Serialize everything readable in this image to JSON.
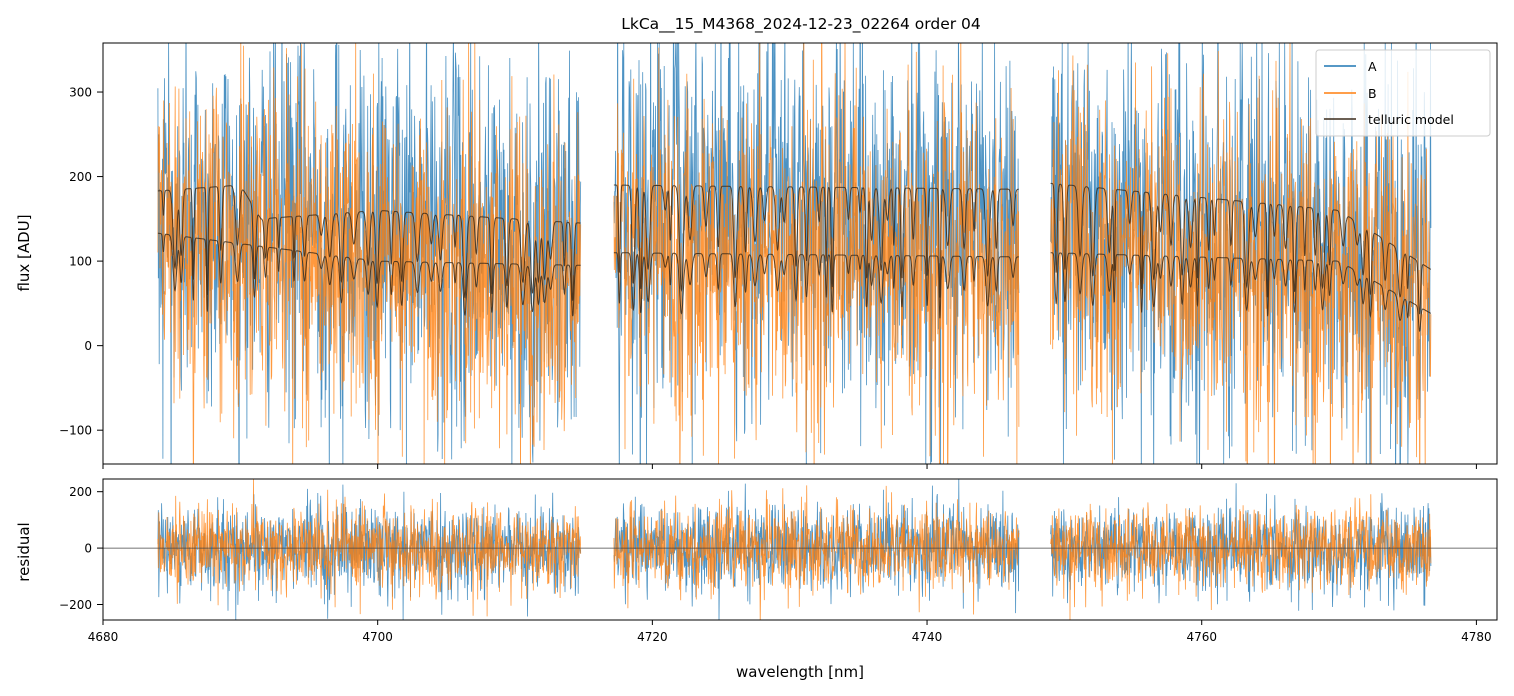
{
  "chart_data": [
    {
      "type": "line",
      "title": "LkCa__15_M4368_2024-12-23_02264  order 04",
      "xlabel": "",
      "ylabel": "flux [ADU]",
      "xlim": [
        4680,
        4781.5
      ],
      "ylim": [
        -140,
        358
      ],
      "yticks": [
        -100,
        0,
        100,
        200,
        300
      ],
      "ytick_labels": [
        "−100",
        "0",
        "100",
        "200",
        "300"
      ],
      "xticks": [
        4680,
        4700,
        4720,
        4740,
        4760,
        4780
      ],
      "xtick_labels": [
        "",
        "",
        "",
        "",
        "",
        ""
      ],
      "segments": [
        [
          4684.0,
          4714.8
        ],
        [
          4717.2,
          4746.7
        ],
        [
          4749.0,
          4776.7
        ]
      ],
      "series": [
        {
          "name": "A",
          "color": "#1f77b4",
          "kind": "noisy-flux",
          "center": [
            [
              4684,
              170
            ],
            [
              4714.8,
              130
            ],
            [
              4717.2,
              190
            ],
            [
              4746.7,
              160
            ],
            [
              4749,
              190
            ],
            [
              4776.7,
              110
            ]
          ],
          "scatter": 110
        },
        {
          "name": "B",
          "color": "#ff7f0e",
          "kind": "noisy-flux",
          "center": [
            [
              4684,
              140
            ],
            [
              4714.8,
              90
            ],
            [
              4717.2,
              130
            ],
            [
              4746.7,
              100
            ],
            [
              4749,
              140
            ],
            [
              4776.7,
              60
            ]
          ],
          "scatter": 95
        },
        {
          "name": "telluric model (A)",
          "color": "#3a2a1a",
          "kind": "model",
          "continuum": [
            [
              4684,
              183
            ],
            [
              4690,
              190
            ],
            [
              4691.5,
              150
            ],
            [
              4700,
              160
            ],
            [
              4714.8,
              145
            ],
            [
              4717.2,
              190
            ],
            [
              4746.7,
              185
            ],
            [
              4749,
              192
            ],
            [
              4770,
              160
            ],
            [
              4776.7,
              90
            ]
          ]
        },
        {
          "name": "telluric model (B)",
          "color": "#3a2a1a",
          "kind": "model",
          "continuum": [
            [
              4684,
              133
            ],
            [
              4700,
              100
            ],
            [
              4714.8,
              95
            ],
            [
              4717.2,
              110
            ],
            [
              4746.7,
              105
            ],
            [
              4749,
              110
            ],
            [
              4770,
              100
            ],
            [
              4776.7,
              38
            ]
          ]
        }
      ],
      "legend": {
        "position": "top-right",
        "entries": [
          {
            "label": "A",
            "color": "#1f77b4"
          },
          {
            "label": "B",
            "color": "#ff7f0e"
          },
          {
            "label": "telluric model",
            "color": "#3a2a1a"
          }
        ]
      }
    },
    {
      "type": "line",
      "title": "",
      "xlabel": "wavelength [nm]",
      "ylabel": "residual",
      "xlim": [
        4680,
        4781.5
      ],
      "ylim": [
        -255,
        245
      ],
      "yticks": [
        -200,
        0,
        200
      ],
      "ytick_labels": [
        "−200",
        "0",
        "200"
      ],
      "xticks": [
        4680,
        4700,
        4720,
        4740,
        4760,
        4780
      ],
      "xtick_labels": [
        "4680",
        "4700",
        "4720",
        "4740",
        "4760",
        "4780"
      ],
      "segments": [
        [
          4684.0,
          4714.8
        ],
        [
          4717.2,
          4746.7
        ],
        [
          4749.0,
          4776.7
        ]
      ],
      "zero_line": 0,
      "series": [
        {
          "name": "A",
          "color": "#1f77b4",
          "kind": "residual",
          "scatter": 75
        },
        {
          "name": "B",
          "color": "#ff7f0e",
          "kind": "residual",
          "scatter": 75
        }
      ]
    }
  ]
}
